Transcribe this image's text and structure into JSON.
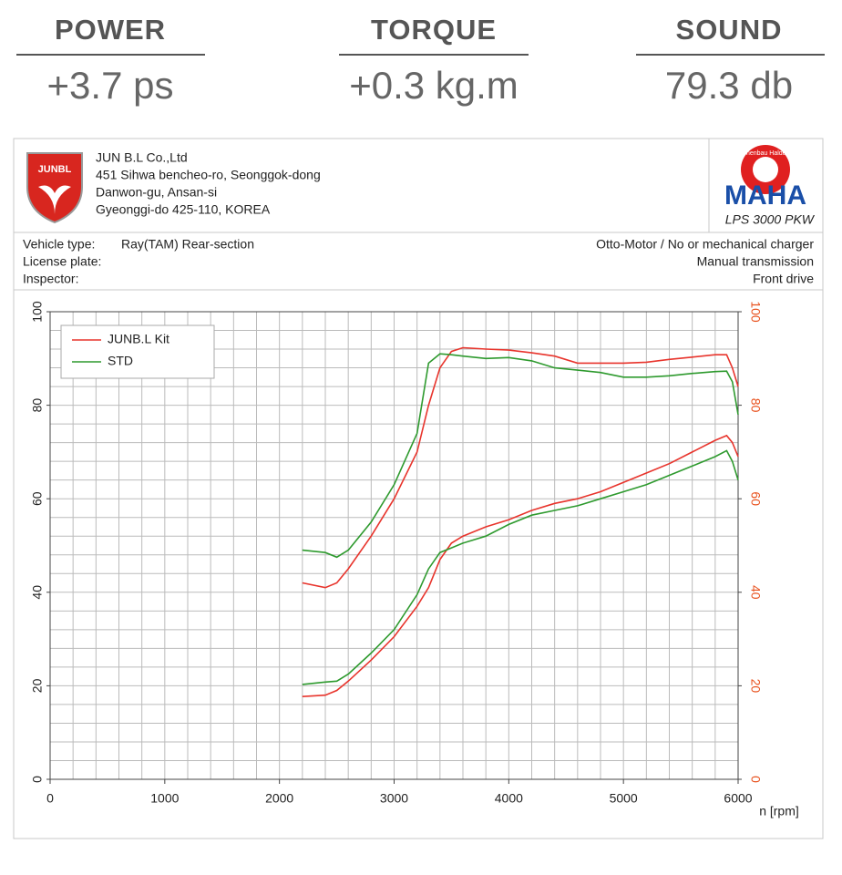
{
  "stats": [
    {
      "label": "POWER",
      "value": "+3.7 ps"
    },
    {
      "label": "TORQUE",
      "value": "+0.3 kg.m"
    },
    {
      "label": "SOUND",
      "value": "79.3 db"
    }
  ],
  "header": {
    "logo": "JUNBL",
    "company": [
      "JUN B.L Co.,Ltd",
      "451 Sihwa bencheo-ro, Seonggok-dong",
      "Danwon-gu, Ansan-si",
      "Gyeonggi-do 425-110, KOREA"
    ],
    "maha_ring": "Maschinenbau Haldenwang",
    "maha": "MAHA",
    "model": "LPS 3000 PKW"
  },
  "vehicle": {
    "left": [
      [
        "Vehicle type:",
        "Ray(TAM) Rear-section"
      ],
      [
        "License plate:",
        ""
      ],
      [
        "Inspector:",
        ""
      ]
    ],
    "right": [
      "Otto-Motor / No or mechanical charger",
      "Manual transmission",
      "Front drive"
    ]
  },
  "chart_data": {
    "type": "line",
    "x_label": "n [rpm]",
    "x": [
      2200,
      2400,
      2500,
      2600,
      2800,
      3000,
      3200,
      3300,
      3400,
      3500,
      3600,
      3800,
      4000,
      4200,
      4400,
      4600,
      4800,
      5000,
      5200,
      5400,
      5600,
      5800,
      5900,
      5950,
      6000
    ],
    "series": [
      {
        "name": "JUNB.L Kit",
        "color": "#e8342c",
        "values": [
          42,
          41,
          42,
          45,
          52,
          60,
          70,
          80,
          88,
          91.5,
          92.3,
          92,
          91.8,
          91.2,
          90.5,
          89,
          89,
          89,
          89.2,
          89.8,
          90.3,
          90.8,
          90.8,
          88,
          84
        ],
        "values_lower": [
          17.7,
          18,
          19,
          21,
          25.5,
          30.5,
          37,
          41,
          47,
          50.5,
          52,
          54,
          55.5,
          57.5,
          59,
          60,
          61.5,
          63.5,
          65.5,
          67.5,
          70,
          72.5,
          73.5,
          72,
          69
        ]
      },
      {
        "name": "STD",
        "color": "#2e9a2e",
        "values": [
          49,
          48.5,
          47.5,
          49,
          55,
          63,
          74,
          89,
          91,
          90.8,
          90.5,
          90,
          90.2,
          89.5,
          88,
          87.5,
          87,
          86,
          86,
          86.3,
          86.8,
          87.2,
          87.3,
          85,
          78
        ],
        "values_lower": [
          20.3,
          20.8,
          21,
          22.5,
          27,
          32,
          39.5,
          45,
          48.5,
          49.5,
          50.5,
          52,
          54.5,
          56.5,
          57.5,
          58.5,
          60,
          61.5,
          63,
          65,
          67,
          69,
          70.3,
          68,
          64
        ]
      }
    ],
    "xlim": [
      0,
      6000
    ],
    "xticks": [
      0,
      1000,
      2000,
      3000,
      4000,
      5000,
      6000
    ],
    "xminor": 200,
    "ylim": [
      0,
      100
    ],
    "yticks": [
      0,
      20,
      40,
      60,
      80,
      100
    ],
    "yminor": 4,
    "y2lim": [
      0,
      100
    ],
    "y2ticks": [
      0,
      20,
      40,
      60,
      80,
      100
    ],
    "y2color": "#e8501c",
    "grid": true,
    "legend": "upper-left"
  }
}
